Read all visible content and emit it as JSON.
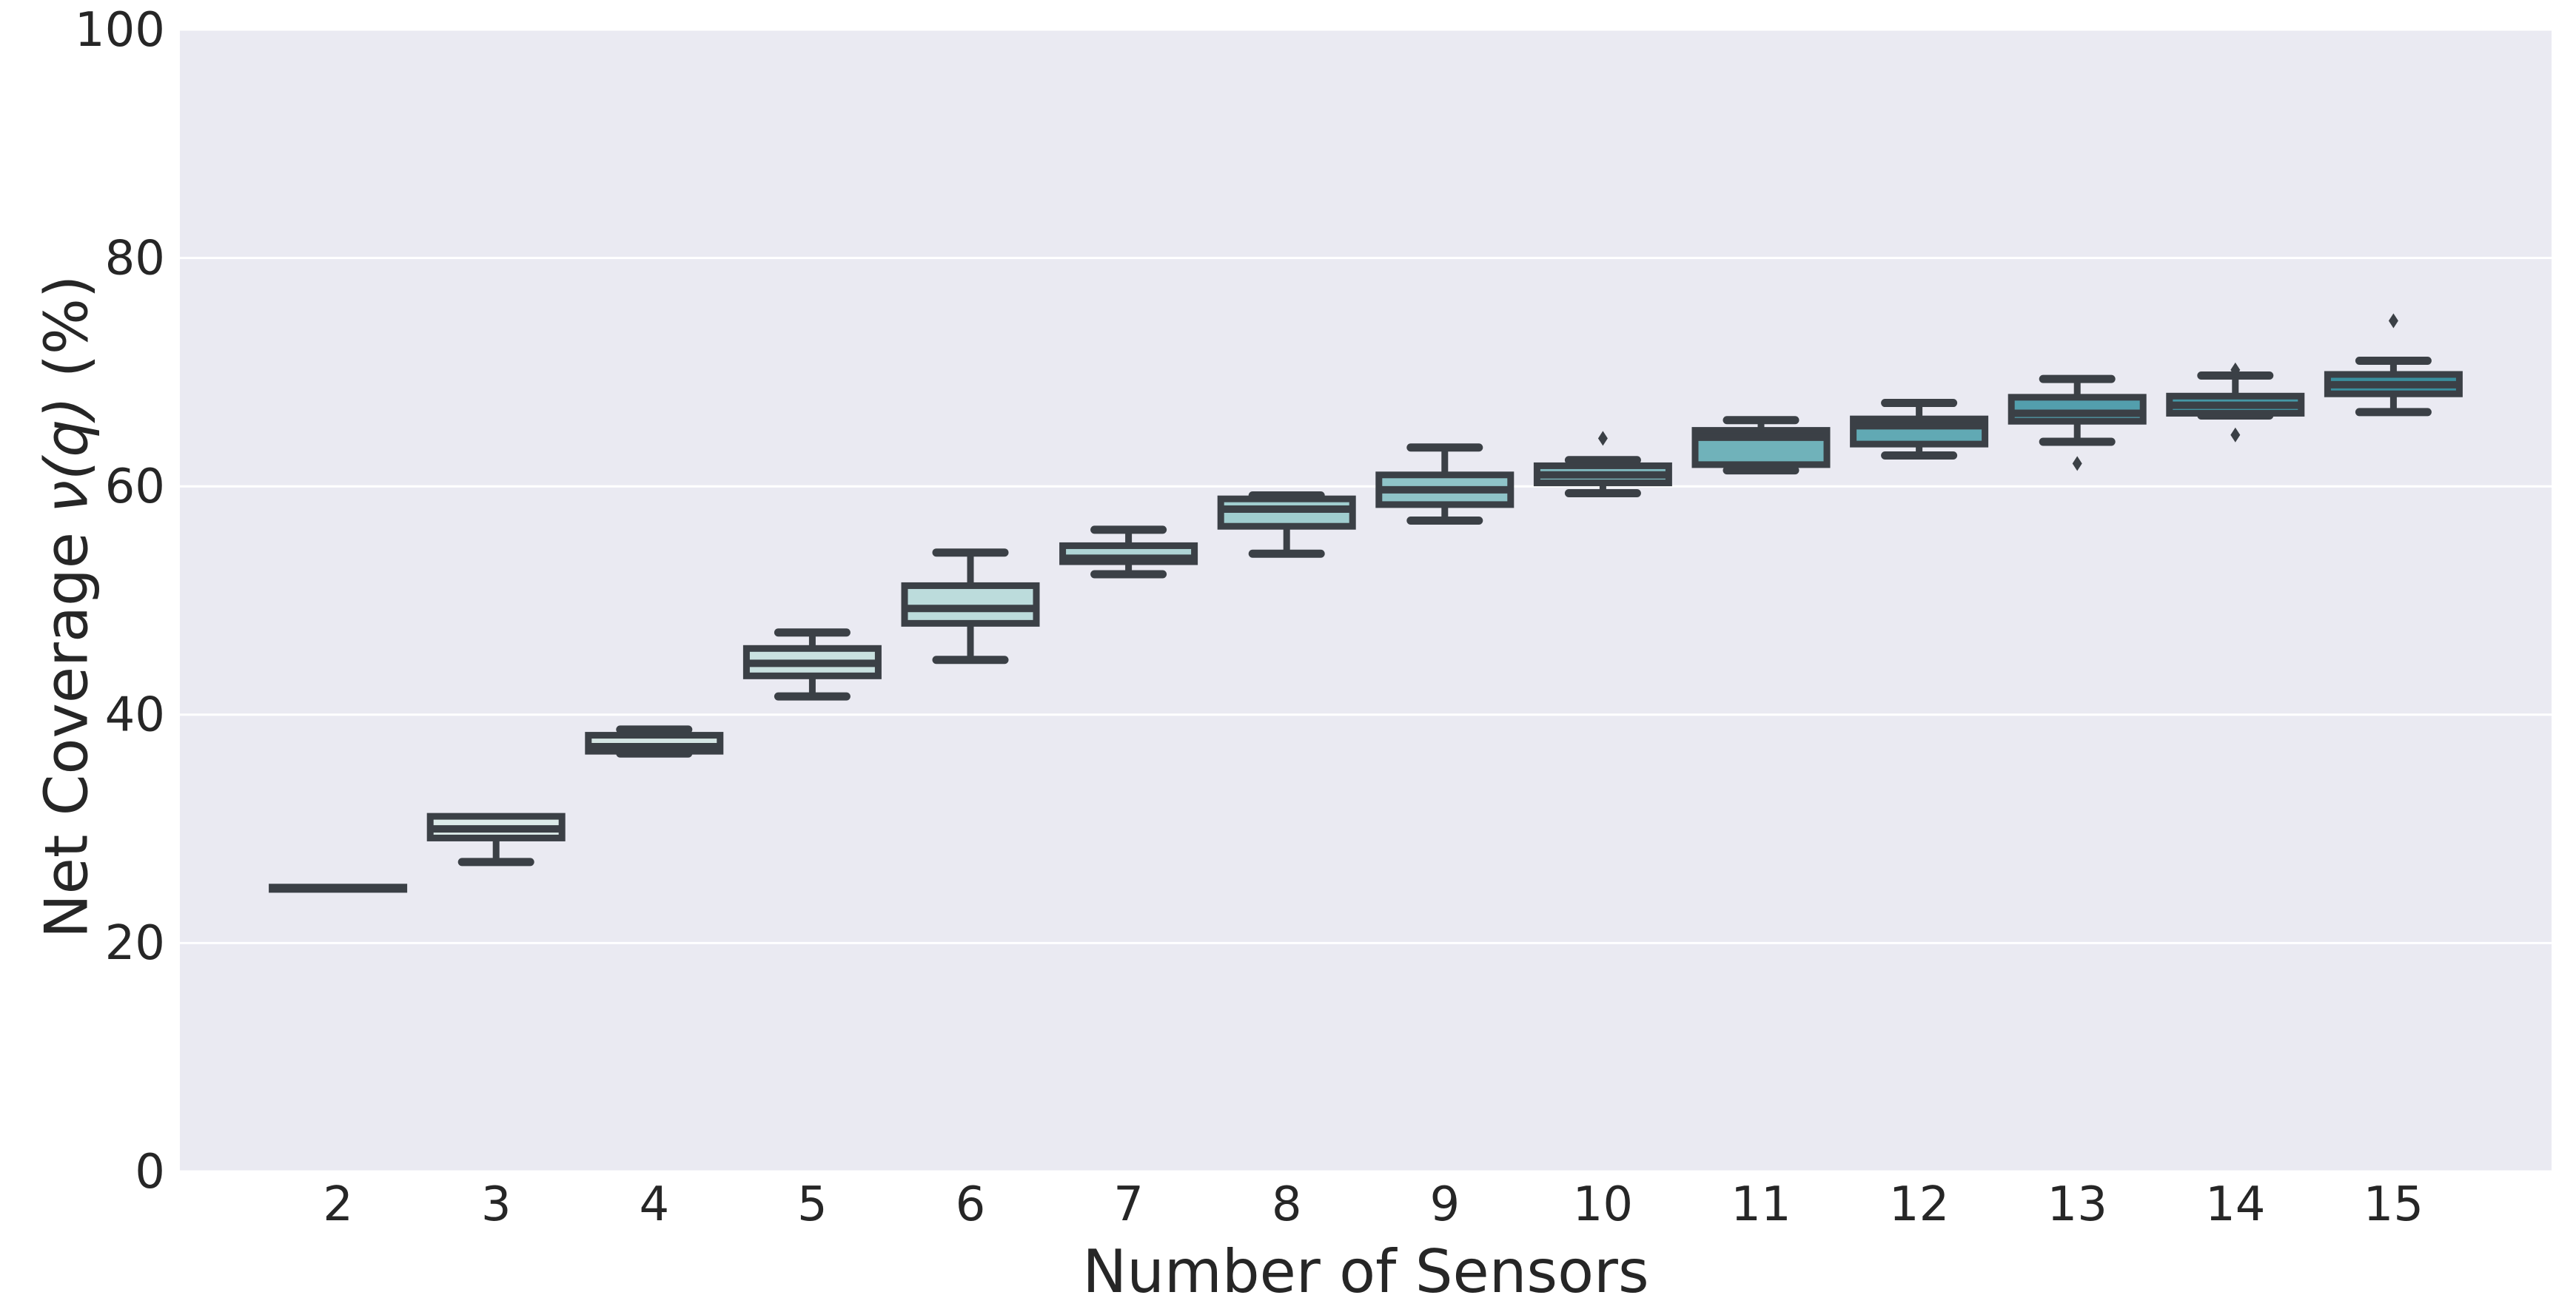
{
  "figure": {
    "xlabel": "Number of Sensors",
    "ylabel_prefix": "Net Coverage ",
    "ylabel_math": "ν(q)",
    "ylabel_suffix": " (%)"
  },
  "chart_data": {
    "type": "box",
    "title": "",
    "xlabel": "Number of Sensors",
    "ylabel": "Net Coverage ν(q) (%)",
    "categories": [
      "2",
      "3",
      "4",
      "5",
      "6",
      "7",
      "8",
      "9",
      "10",
      "11",
      "12",
      "13",
      "14",
      "15"
    ],
    "y_ticks": [
      "0",
      "20",
      "40",
      "60",
      "80",
      "100"
    ],
    "y_tick_values": [
      0,
      20,
      40,
      60,
      80,
      100
    ],
    "ylim": [
      0,
      100
    ],
    "grid": "horizontal-white-lines",
    "legend": "none",
    "boxes": [
      {
        "category": "2",
        "whislo": 24.8,
        "q1": 24.7,
        "median": 24.8,
        "q3": 24.9,
        "whishi": 24.8,
        "outliers": [],
        "fill": "#e2eeec"
      },
      {
        "category": "3",
        "whislo": 27.1,
        "q1": 29.2,
        "median": 30.0,
        "q3": 31.1,
        "whishi": 31.2,
        "outliers": [],
        "fill": "#dcebe9"
      },
      {
        "category": "4",
        "whislo": 36.6,
        "q1": 36.8,
        "median": 37.2,
        "q3": 38.2,
        "whishi": 38.7,
        "outliers": [],
        "fill": "#d5e6e4"
      },
      {
        "category": "5",
        "whislo": 41.6,
        "q1": 43.4,
        "median": 44.5,
        "q3": 45.8,
        "whishi": 47.2,
        "outliers": [],
        "fill": "#c9e1e0"
      },
      {
        "category": "6",
        "whislo": 44.8,
        "q1": 48.0,
        "median": 49.3,
        "q3": 51.3,
        "whishi": 54.2,
        "outliers": [],
        "fill": "#bcdcdc"
      },
      {
        "category": "7",
        "whislo": 52.3,
        "q1": 53.4,
        "median": 53.7,
        "q3": 54.8,
        "whishi": 56.2,
        "outliers": [],
        "fill": "#aed4d5"
      },
      {
        "category": "8",
        "whislo": 54.1,
        "q1": 56.5,
        "median": 58.0,
        "q3": 58.9,
        "whishi": 59.2,
        "outliers": [],
        "fill": "#a0cdcf"
      },
      {
        "category": "9",
        "whislo": 57.0,
        "q1": 58.4,
        "median": 59.7,
        "q3": 61.0,
        "whishi": 63.4,
        "outliers": [],
        "fill": "#8fc4c8"
      },
      {
        "category": "10",
        "whislo": 59.4,
        "q1": 60.3,
        "median": 61.0,
        "q3": 61.8,
        "whishi": 62.3,
        "outliers": [
          64.2
        ],
        "fill": "#81bcc2"
      },
      {
        "category": "11",
        "whislo": 61.4,
        "q1": 61.9,
        "median": 64.3,
        "q3": 64.9,
        "whishi": 65.8,
        "outliers": [],
        "fill": "#70b2ba"
      },
      {
        "category": "12",
        "whislo": 62.7,
        "q1": 63.7,
        "median": 65.3,
        "q3": 65.9,
        "whishi": 67.3,
        "outliers": [],
        "fill": "#61a9b4"
      },
      {
        "category": "13",
        "whislo": 63.9,
        "q1": 65.7,
        "median": 66.4,
        "q3": 67.8,
        "whishi": 69.4,
        "outliers": [
          62.0
        ],
        "fill": "#539fad"
      },
      {
        "category": "14",
        "whislo": 66.2,
        "q1": 66.4,
        "median": 67.1,
        "q3": 67.9,
        "whishi": 69.7,
        "outliers": [
          70.2,
          64.5
        ],
        "fill": "#4597a5"
      },
      {
        "category": "15",
        "whislo": 66.5,
        "q1": 68.1,
        "median": 68.9,
        "q3": 69.8,
        "whishi": 71.0,
        "outliers": [
          74.5
        ],
        "fill": "#3a8f9e"
      }
    ],
    "colors": {
      "plot_background": "#eaeaf2",
      "grid_line": "#ffffff",
      "box_edge": "#3b4046",
      "tick_text": "#262626",
      "page_background": "#ffffff"
    }
  }
}
